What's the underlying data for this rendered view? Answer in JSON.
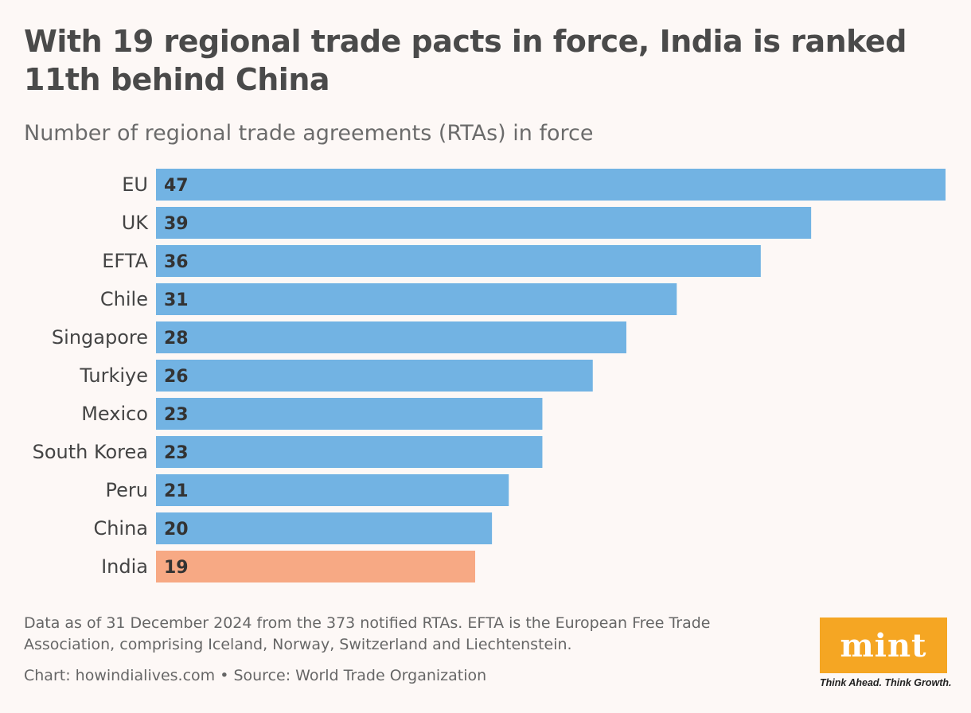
{
  "header": {
    "title": "With 19 regional trade pacts in force, India is ranked 11th behind China",
    "subtitle": "Number of regional trade agreements (RTAs) in force"
  },
  "chart_data": {
    "type": "bar",
    "orientation": "horizontal",
    "categories": [
      "EU",
      "UK",
      "EFTA",
      "Chile",
      "Singapore",
      "Turkiye",
      "Mexico",
      "South Korea",
      "Peru",
      "China",
      "India"
    ],
    "values": [
      47,
      39,
      36,
      31,
      28,
      26,
      23,
      23,
      21,
      20,
      19
    ],
    "highlight": "India",
    "colors": {
      "default": "#72b3e3",
      "highlight": "#f7a984"
    },
    "title": "With 19 regional trade pacts in force, India is ranked 11th behind China",
    "subtitle": "Number of regional trade agreements (RTAs) in force",
    "xlabel": "",
    "ylabel": "",
    "xlim": [
      0,
      47
    ],
    "grid": false,
    "legend": "none",
    "data_labels": "inside-start"
  },
  "footer": {
    "note": "Data as of 31 December 2024 from the 373 notified RTAs. EFTA is the European Free Trade Association, comprising Iceland, Norway, Switzerland and Liechtenstein.",
    "credit": "Chart: howindialives.com • Source: World Trade Organization"
  },
  "branding": {
    "logo_text": "mint",
    "tagline": "Think Ahead. Think Growth.",
    "logo_color": "#f5a623"
  }
}
